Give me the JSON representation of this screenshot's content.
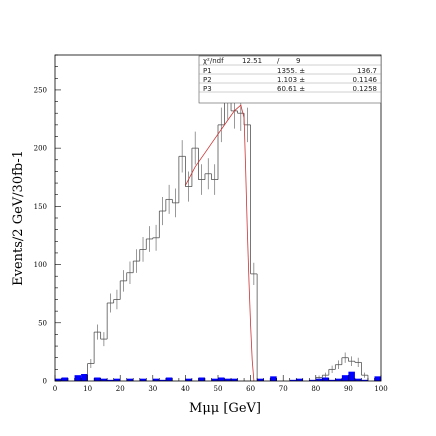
{
  "chart_data": {
    "type": "bar",
    "xlabel": "Mμμ [GeV]",
    "ylabel": "Events/2 GeV/30fb-1",
    "xlim": [
      0,
      100
    ],
    "ylim": [
      0,
      280
    ],
    "x_ticks": [
      0,
      10,
      20,
      30,
      40,
      50,
      60,
      70,
      80,
      90,
      100
    ],
    "y_ticks": [
      0,
      50,
      100,
      150,
      200,
      250
    ],
    "bin_width": 2,
    "grid": false,
    "signal_histogram": {
      "style": "steps-with-error-bars",
      "color": "#555555",
      "bin_edges_start": 0,
      "values": [
        0,
        0,
        0,
        0,
        0,
        15,
        42,
        36,
        67,
        70,
        86,
        93,
        103,
        113,
        122,
        123,
        146,
        156,
        153,
        193,
        167,
        200,
        173,
        178,
        173,
        220,
        240,
        232,
        230,
        220,
        92,
        0,
        0,
        0,
        0,
        0,
        0,
        0,
        0,
        0,
        3,
        5,
        10,
        14,
        20,
        17,
        16,
        5,
        0,
        0
      ]
    },
    "background_histogram": {
      "style": "filled",
      "color": "#0000ff",
      "bin_edges_start": 0,
      "values": [
        2,
        3,
        0,
        5,
        6,
        0,
        3,
        2,
        1,
        2,
        0,
        2,
        0,
        2,
        0,
        2,
        1,
        3,
        0,
        0,
        2,
        0,
        3,
        0,
        2,
        3,
        2,
        2,
        0,
        0,
        0,
        2,
        0,
        4,
        0,
        0,
        1,
        2,
        0,
        1,
        2,
        3,
        1,
        2,
        5,
        8,
        2,
        1,
        0,
        4
      ]
    },
    "fit_curve": {
      "color": "#cc3333",
      "x": [
        40,
        43,
        46,
        49,
        52,
        55,
        57,
        58,
        58.5,
        59,
        59.5,
        60,
        60.5,
        61
      ],
      "y": [
        168,
        184,
        196,
        208,
        220,
        232,
        237,
        226,
        180,
        130,
        85,
        48,
        18,
        0
      ]
    },
    "stats_box": {
      "header": [
        "χ²/ndf",
        "12.51",
        "/",
        "9"
      ],
      "rows": [
        [
          "P1",
          "1355. ±",
          "136.7"
        ],
        [
          "P2",
          "1.103 ±",
          "0.1146"
        ],
        [
          "P3",
          "60.61 ±",
          "0.1258"
        ]
      ]
    }
  }
}
